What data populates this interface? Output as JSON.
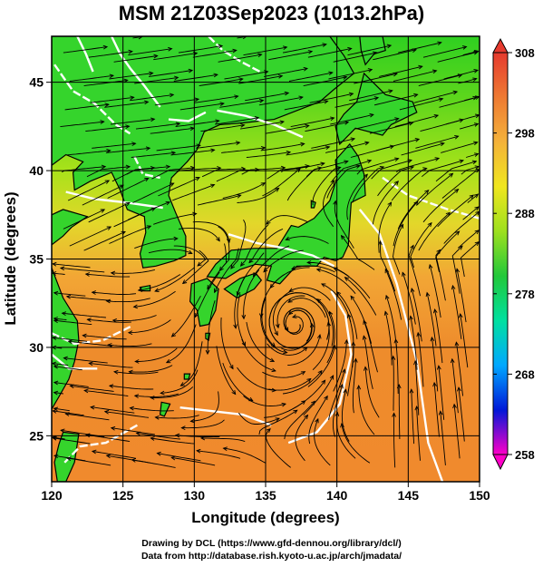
{
  "title": "MSM 21Z03Sep2023 (1013.2hPa)",
  "axes": {
    "xlabel": "Longitude (degrees)",
    "ylabel": "Latitude  (degrees)",
    "x_ticks": [
      "120",
      "125",
      "130",
      "135",
      "140",
      "145",
      "150"
    ],
    "y_ticks": [
      "25",
      "30",
      "35",
      "40",
      "45"
    ],
    "x_range": [
      120,
      150
    ],
    "y_range": [
      22.4,
      47.6
    ]
  },
  "colorbar": {
    "ticks": [
      "308",
      "298",
      "288",
      "278",
      "268",
      "258"
    ],
    "range": [
      258,
      308
    ],
    "colors": [
      "#ff00c8",
      "#0018d8",
      "#00a8ff",
      "#00e0a0",
      "#22c83a",
      "#9ee01e",
      "#f0e61e",
      "#f4b23a",
      "#ee7a32",
      "#e63a2e"
    ]
  },
  "map": {
    "ocean_stops": [
      {
        "lat": 47.6,
        "color": "#2fd021"
      },
      {
        "lat": 44,
        "color": "#5ed61c"
      },
      {
        "lat": 40,
        "color": "#a9e21a"
      },
      {
        "lat": 37,
        "color": "#e3d72a"
      },
      {
        "lat": 34,
        "color": "#f2a635"
      },
      {
        "lat": 30,
        "color": "#ee8c2c"
      },
      {
        "lat": 22.4,
        "color": "#f08a2d"
      }
    ],
    "land_color": "#35d42c",
    "coast_color": "#000000",
    "contour_color": "#ffffff",
    "typhoon_center": [
      137.1,
      31.3
    ]
  },
  "chart_data": {
    "type": "heatmap",
    "title": "MSM 21Z03Sep2023 (1013.2hPa)",
    "xlabel": "Longitude (degrees)",
    "ylabel": "Latitude  (degrees)",
    "xlim": [
      120,
      150
    ],
    "ylim": [
      22.4,
      47.6
    ],
    "colorbar_range": [
      258,
      308
    ],
    "colorbar_ticks": [
      258,
      268,
      278,
      288,
      298,
      308
    ],
    "grid": true,
    "overlays": [
      "streamlines (wind)",
      "white contour lines"
    ]
  },
  "credits": {
    "line1": "Drawing by DCL (https://www.gfd-dennou.org/library/dcl/)",
    "line2": "Data from http://database.rish.kyoto-u.ac.jp/arch/jmadata/"
  }
}
